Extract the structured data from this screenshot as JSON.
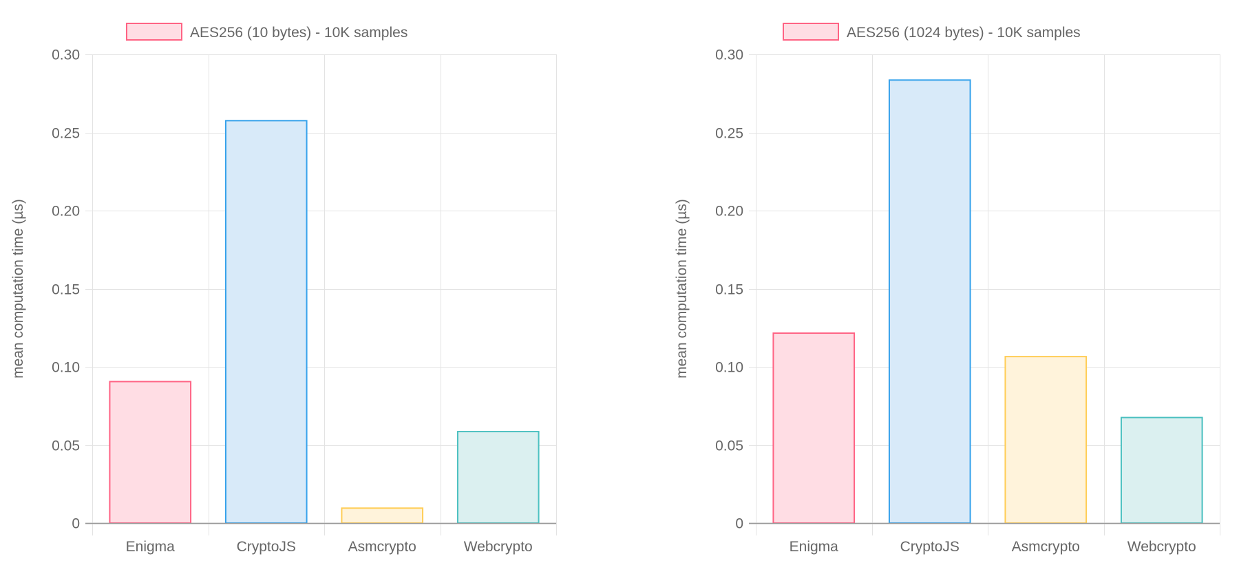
{
  "chart_data": [
    {
      "type": "bar",
      "legend": {
        "label": "AES256 (10 bytes) - 10K samples",
        "position": "top",
        "color_fill": "#ffdde4",
        "color_border": "#ff6384"
      },
      "ylabel": "mean computation time (µs)",
      "xlabel": "",
      "ylim": [
        0,
        0.3
      ],
      "yticks": [
        "0",
        "0.05",
        "0.10",
        "0.15",
        "0.20",
        "0.25",
        "0.30"
      ],
      "ytick_values": [
        0,
        0.05,
        0.1,
        0.15,
        0.2,
        0.25,
        0.3
      ],
      "grid": true,
      "categories": [
        "Enigma",
        "CryptoJS",
        "Asmcrypto",
        "Webcrypto"
      ],
      "series": [
        {
          "values": [
            0.091,
            0.258,
            0.01,
            0.059
          ]
        }
      ],
      "bar_fills": [
        "#ffdde4",
        "#d8eaf9",
        "#fff3db",
        "#dbf0f0"
      ],
      "bar_borders": [
        "#ff6384",
        "#36a2eb",
        "#ffcd56",
        "#4bc0c0"
      ]
    },
    {
      "type": "bar",
      "legend": {
        "label": "AES256 (1024 bytes) - 10K samples",
        "position": "top",
        "color_fill": "#ffdde4",
        "color_border": "#ff6384"
      },
      "ylabel": "mean computation time (µs)",
      "xlabel": "",
      "ylim": [
        0,
        0.3
      ],
      "yticks": [
        "0",
        "0.05",
        "0.10",
        "0.15",
        "0.20",
        "0.25",
        "0.30"
      ],
      "ytick_values": [
        0,
        0.05,
        0.1,
        0.15,
        0.2,
        0.25,
        0.3
      ],
      "grid": true,
      "categories": [
        "Enigma",
        "CryptoJS",
        "Asmcrypto",
        "Webcrypto"
      ],
      "series": [
        {
          "values": [
            0.122,
            0.284,
            0.107,
            0.068
          ]
        }
      ],
      "bar_fills": [
        "#ffdde4",
        "#d8eaf9",
        "#fff3db",
        "#dbf0f0"
      ],
      "bar_borders": [
        "#ff6384",
        "#36a2eb",
        "#ffcd56",
        "#4bc0c0"
      ]
    }
  ]
}
